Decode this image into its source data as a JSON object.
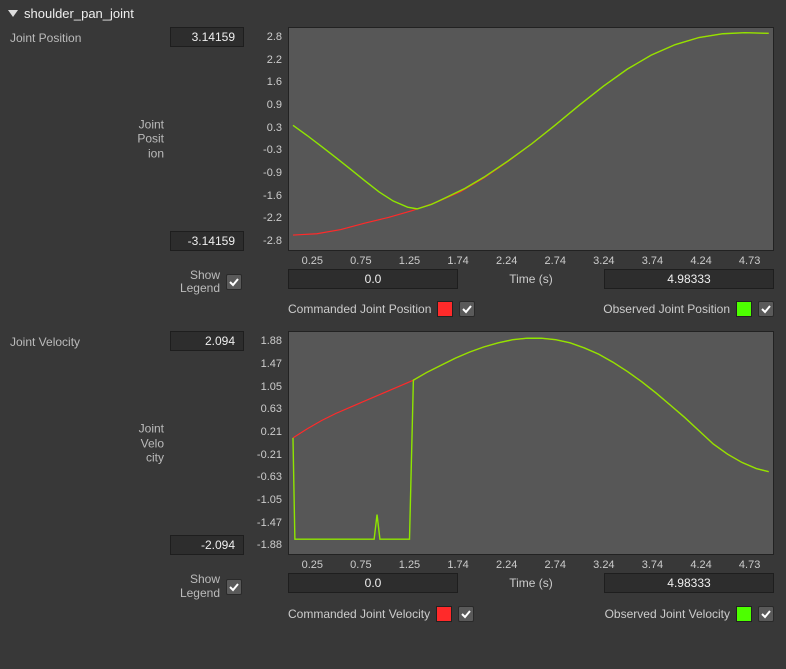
{
  "header": {
    "title": "shoulder_pan_joint"
  },
  "panels": [
    {
      "key": "position",
      "label": "Joint Position",
      "y_axis_label": "Joint Posit ion",
      "y_max": "3.14159",
      "y_min": "-3.14159",
      "y_ticks": [
        "2.8",
        "2.2",
        "1.6",
        "0.9",
        "0.3",
        "-0.3",
        "-0.9",
        "-1.6",
        "-2.2",
        "-2.8"
      ],
      "x_ticks": [
        "0.25",
        "0.75",
        "1.25",
        "1.74",
        "2.24",
        "2.74",
        "3.24",
        "3.74",
        "4.24",
        "4.73"
      ],
      "x_label": "Time (s)",
      "x_min": "0.0",
      "x_max": "4.98333",
      "show_legend_label": "Show Legend",
      "legend": [
        {
          "name": "Commanded Joint Position",
          "color": "#ff2a2a",
          "checked": true
        },
        {
          "name": "Observed Joint Position",
          "color": "#4dff00",
          "checked": true
        }
      ],
      "chart": {
        "type": "line",
        "xlim": [
          0.0,
          4.98333
        ],
        "ylim": [
          -3.14159,
          3.14159
        ],
        "background_color": "#575757",
        "series": [
          {
            "name": "commanded",
            "color": "#ff2a2a",
            "line_width": 1.2,
            "data": [
              [
                0.0,
                -2.82
              ],
              [
                0.25,
                -2.78
              ],
              [
                0.5,
                -2.66
              ],
              [
                0.75,
                -2.47
              ],
              [
                1.0,
                -2.3
              ],
              [
                1.25,
                -2.1
              ],
              [
                1.5,
                -1.86
              ],
              [
                1.75,
                -1.55
              ],
              [
                2.0,
                -1.14
              ],
              [
                2.25,
                -0.66
              ],
              [
                2.5,
                -0.14
              ],
              [
                2.75,
                0.42
              ],
              [
                3.0,
                1.0
              ],
              [
                3.25,
                1.55
              ],
              [
                3.5,
                2.05
              ],
              [
                3.75,
                2.46
              ],
              [
                4.0,
                2.77
              ],
              [
                4.25,
                2.98
              ],
              [
                4.5,
                3.09
              ],
              [
                4.73,
                3.12
              ],
              [
                4.98,
                3.1
              ]
            ]
          },
          {
            "name": "observed",
            "color": "#8fe600",
            "line_width": 1.4,
            "data": [
              [
                0.0,
                0.4
              ],
              [
                0.15,
                0.1
              ],
              [
                0.3,
                -0.22
              ],
              [
                0.45,
                -0.55
              ],
              [
                0.6,
                -0.88
              ],
              [
                0.75,
                -1.22
              ],
              [
                0.9,
                -1.55
              ],
              [
                1.05,
                -1.82
              ],
              [
                1.2,
                -2.0
              ],
              [
                1.3,
                -2.05
              ],
              [
                1.45,
                -1.92
              ],
              [
                1.6,
                -1.72
              ],
              [
                1.8,
                -1.45
              ],
              [
                2.0,
                -1.12
              ],
              [
                2.25,
                -0.65
              ],
              [
                2.5,
                -0.14
              ],
              [
                2.75,
                0.42
              ],
              [
                3.0,
                1.0
              ],
              [
                3.25,
                1.55
              ],
              [
                3.5,
                2.05
              ],
              [
                3.75,
                2.46
              ],
              [
                4.0,
                2.77
              ],
              [
                4.25,
                2.98
              ],
              [
                4.5,
                3.09
              ],
              [
                4.73,
                3.12
              ],
              [
                4.98,
                3.1
              ]
            ]
          }
        ]
      }
    },
    {
      "key": "velocity",
      "label": "Joint Velocity",
      "y_axis_label": "Joint Velo city",
      "y_max": "2.094",
      "y_min": "-2.094",
      "y_ticks": [
        "1.88",
        "1.47",
        "1.05",
        "0.63",
        "0.21",
        "-0.21",
        "-0.63",
        "-1.05",
        "-1.47",
        "-1.88"
      ],
      "x_ticks": [
        "0.25",
        "0.75",
        "1.25",
        "1.74",
        "2.24",
        "2.74",
        "3.24",
        "3.74",
        "4.24",
        "4.73"
      ],
      "x_label": "Time (s)",
      "x_min": "0.0",
      "x_max": "4.98333",
      "show_legend_label": "Show Legend",
      "legend": [
        {
          "name": "Commanded Joint Velocity",
          "color": "#ff2a2a",
          "checked": true
        },
        {
          "name": "Observed Joint Velocity",
          "color": "#4dff00",
          "checked": true
        }
      ],
      "chart": {
        "type": "line",
        "xlim": [
          0.0,
          4.98333
        ],
        "ylim": [
          -2.094,
          2.094
        ],
        "background_color": "#575757",
        "series": [
          {
            "name": "commanded",
            "color": "#ff2a2a",
            "line_width": 1.2,
            "data": [
              [
                0.0,
                0.1
              ],
              [
                0.15,
                0.28
              ],
              [
                0.3,
                0.44
              ],
              [
                0.45,
                0.58
              ],
              [
                0.6,
                0.7
              ],
              [
                0.75,
                0.82
              ],
              [
                0.9,
                0.94
              ],
              [
                1.05,
                1.06
              ],
              [
                1.2,
                1.18
              ],
              [
                1.26,
                1.23
              ],
              [
                1.4,
                1.38
              ],
              [
                1.55,
                1.52
              ],
              [
                1.7,
                1.66
              ],
              [
                1.85,
                1.78
              ],
              [
                2.0,
                1.88
              ],
              [
                2.15,
                1.96
              ],
              [
                2.3,
                2.02
              ],
              [
                2.45,
                2.05
              ],
              [
                2.6,
                2.05
              ],
              [
                2.75,
                2.02
              ],
              [
                2.9,
                1.96
              ],
              [
                3.05,
                1.86
              ],
              [
                3.2,
                1.74
              ],
              [
                3.35,
                1.58
              ],
              [
                3.5,
                1.4
              ],
              [
                3.65,
                1.2
              ],
              [
                3.8,
                0.98
              ],
              [
                3.95,
                0.74
              ],
              [
                4.1,
                0.5
              ],
              [
                4.25,
                0.24
              ],
              [
                4.4,
                -0.02
              ],
              [
                4.55,
                -0.22
              ],
              [
                4.7,
                -0.38
              ],
              [
                4.85,
                -0.5
              ],
              [
                4.98,
                -0.56
              ]
            ]
          },
          {
            "name": "observed",
            "color": "#8fe600",
            "line_width": 1.4,
            "data": [
              [
                0.0,
                0.1
              ],
              [
                0.02,
                -1.88
              ],
              [
                0.15,
                -1.88
              ],
              [
                0.3,
                -1.88
              ],
              [
                0.45,
                -1.88
              ],
              [
                0.6,
                -1.88
              ],
              [
                0.75,
                -1.88
              ],
              [
                0.85,
                -1.88
              ],
              [
                0.88,
                -1.4
              ],
              [
                0.91,
                -1.88
              ],
              [
                1.0,
                -1.88
              ],
              [
                1.15,
                -1.88
              ],
              [
                1.22,
                -1.88
              ],
              [
                1.26,
                1.23
              ],
              [
                1.4,
                1.38
              ],
              [
                1.55,
                1.52
              ],
              [
                1.7,
                1.66
              ],
              [
                1.85,
                1.78
              ],
              [
                2.0,
                1.88
              ],
              [
                2.15,
                1.96
              ],
              [
                2.3,
                2.02
              ],
              [
                2.45,
                2.05
              ],
              [
                2.6,
                2.05
              ],
              [
                2.75,
                2.02
              ],
              [
                2.9,
                1.96
              ],
              [
                3.05,
                1.86
              ],
              [
                3.2,
                1.74
              ],
              [
                3.35,
                1.58
              ],
              [
                3.5,
                1.4
              ],
              [
                3.65,
                1.2
              ],
              [
                3.8,
                0.98
              ],
              [
                3.95,
                0.74
              ],
              [
                4.1,
                0.5
              ],
              [
                4.25,
                0.24
              ],
              [
                4.4,
                -0.02
              ],
              [
                4.55,
                -0.22
              ],
              [
                4.7,
                -0.38
              ],
              [
                4.85,
                -0.5
              ],
              [
                4.98,
                -0.56
              ]
            ]
          }
        ]
      }
    }
  ]
}
